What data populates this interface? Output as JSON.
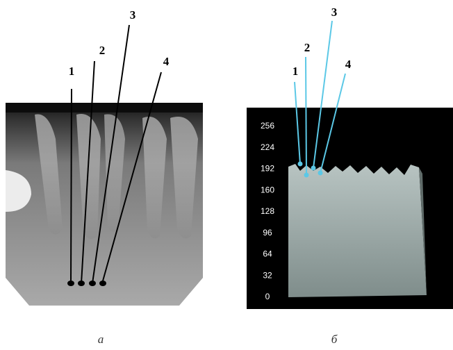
{
  "panel_a": {
    "labels": [
      "1",
      "2",
      "3",
      "4"
    ],
    "caption": "а"
  },
  "panel_b": {
    "labels": [
      "1",
      "2",
      "3",
      "4"
    ],
    "scale": [
      256,
      224,
      192,
      160,
      128,
      96,
      64,
      32,
      0
    ],
    "caption": "б"
  }
}
